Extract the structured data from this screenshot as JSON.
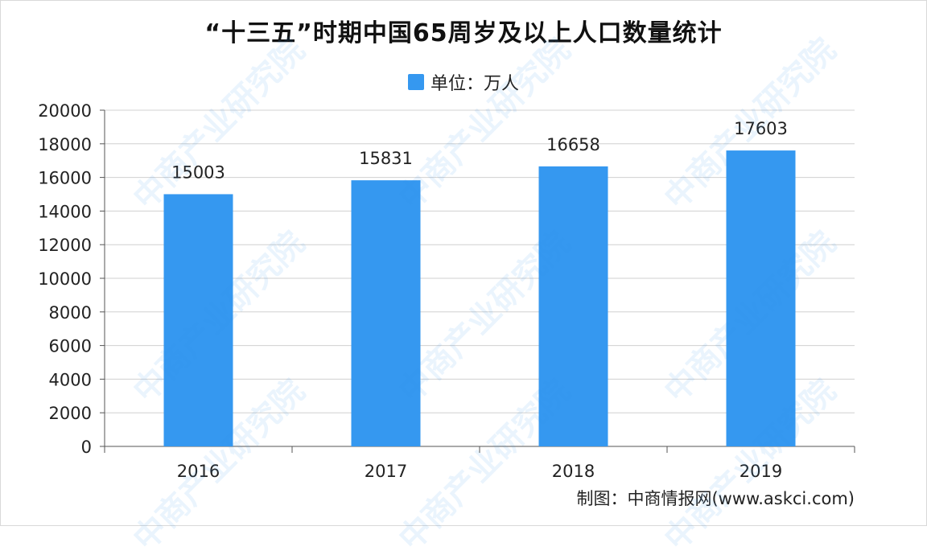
{
  "title": "“十三五”时期中国65周岁及以上人口数量统计",
  "legend": {
    "label": "单位：万人",
    "color": "#3598f0"
  },
  "source": "制图：中商情报网(www.askci.com)",
  "watermark": "中商产业研究院",
  "chart_data": {
    "type": "bar",
    "categories": [
      "2016",
      "2017",
      "2018",
      "2019"
    ],
    "series": [
      {
        "values": [
          15003,
          15831,
          16658,
          17603
        ]
      }
    ],
    "data_labels": [
      "15003",
      "15831",
      "16658",
      "17603"
    ],
    "ylim": [
      0,
      20000
    ],
    "yticks": [
      0,
      2000,
      4000,
      6000,
      8000,
      10000,
      12000,
      14000,
      16000,
      18000,
      20000
    ],
    "grid": true,
    "legend_position": "top-center",
    "bar_color": "#3598f0"
  }
}
